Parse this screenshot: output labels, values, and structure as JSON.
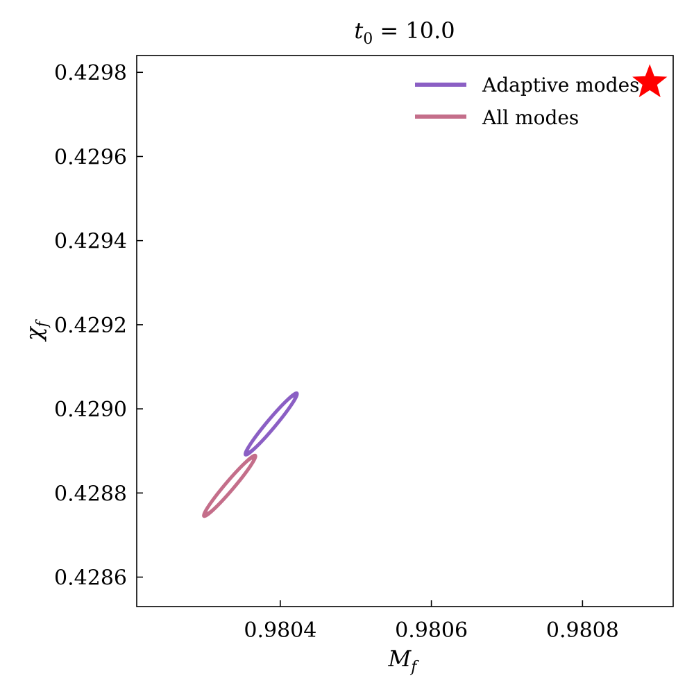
{
  "chart_data": {
    "type": "scatter",
    "title": "t_0 = 10.0",
    "title_parts": {
      "main": "t",
      "sub": "0",
      "rest": " = 10.0"
    },
    "xlabel": "M_f",
    "xlabel_parts": {
      "main": "M",
      "sub": "f"
    },
    "ylabel": "χ_f",
    "ylabel_parts": {
      "main": "χ",
      "sub": "f"
    },
    "xlim": [
      0.98021,
      0.98092
    ],
    "ylim": [
      0.42853,
      0.42984
    ],
    "xticks": [
      0.9804,
      0.9806,
      0.9808
    ],
    "xtick_labels": [
      "0.9804",
      "0.9806",
      "0.9808"
    ],
    "yticks": [
      0.4286,
      0.4288,
      0.429,
      0.4292,
      0.4294,
      0.4296,
      0.4298
    ],
    "ytick_labels": [
      "0.4286",
      "0.4288",
      "0.4290",
      "0.4292",
      "0.4294",
      "0.4296",
      "0.4298"
    ],
    "grid": false,
    "legend_position": "top-right",
    "series": [
      {
        "name": "Adaptive modes",
        "color": "#8b5fc4",
        "contours": [
          {
            "center": [
              0.980388,
              0.428964
            ],
            "x_halfwidth": 3.4e-05,
            "y_halfwidth": 7.3e-05,
            "thickness": 0.4
          },
          {
            "center": [
              0.980388,
              0.428964
            ],
            "x_halfwidth": 3.1e-05,
            "y_halfwidth": 6.6e-05,
            "thickness": 0.15
          }
        ]
      },
      {
        "name": "All modes",
        "color": "#c46e8a",
        "contours": [
          {
            "center": [
              0.980333,
              0.428817
            ],
            "x_halfwidth": 3.4e-05,
            "y_halfwidth": 7.2e-05,
            "thickness": 0.42
          },
          {
            "center": [
              0.980333,
              0.428817
            ],
            "x_halfwidth": 3.1e-05,
            "y_halfwidth": 6.5e-05,
            "thickness": 0.16
          }
        ]
      }
    ],
    "markers": [
      {
        "name": "true-value",
        "shape": "star",
        "color": "#ff0000",
        "x": 0.980889,
        "y": 0.429776
      }
    ]
  }
}
